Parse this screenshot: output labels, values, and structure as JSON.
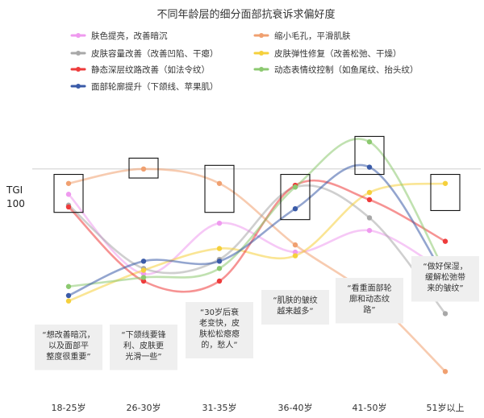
{
  "chart_data": {
    "type": "line",
    "title": "不同年龄层的细分面部抗衰诉求偏好度",
    "ylabel": "TGI",
    "reference_value": 100,
    "categories": [
      "18-25岁",
      "26-30岁",
      "31-35岁",
      "36-40岁",
      "41-50岁",
      "51岁以上"
    ],
    "ylim": [
      -15,
      140
    ],
    "series": [
      {
        "name": "肤色提亮，改善暗沉",
        "color": "#ef9aef",
        "values": [
          86,
          42,
          70,
          54,
          66,
          43
        ]
      },
      {
        "name": "缩小毛孔，平滑肌肤",
        "color": "#f0a070",
        "values": [
          92,
          100,
          92,
          58,
          30,
          -12
        ]
      },
      {
        "name": "皮肤容量改善（改善凹陷、干瘪）",
        "color": "#a8a8a8",
        "values": [
          80,
          45,
          50,
          90,
          73,
          20
        ]
      },
      {
        "name": "皮肤弹性修复（改善松弛、干燥）",
        "color": "#f5d03c",
        "values": [
          27,
          44,
          56,
          52,
          87,
          92
        ]
      },
      {
        "name": "静态深层纹路改善（如法令纹）",
        "color": "#ee3b3b",
        "values": [
          79,
          38,
          38,
          91,
          83,
          60
        ]
      },
      {
        "name": "动态表情纹控制（如鱼尾纹、抬头纹）",
        "color": "#8cc970",
        "values": [
          35,
          40,
          45,
          90,
          115,
          43
        ]
      },
      {
        "name": "面部轮廓提升（下颌线、苹果肌）",
        "color": "#3a5ba8",
        "values": [
          30,
          49,
          49,
          78,
          101,
          40
        ]
      }
    ],
    "highlight_boxes": [
      {
        "category": "18-25岁",
        "range": [
          76,
          97
        ]
      },
      {
        "category": "26-30岁",
        "range": [
          95,
          106
        ]
      },
      {
        "category": "31-35岁",
        "range": [
          76,
          102
        ]
      },
      {
        "category": "36-40岁",
        "range": [
          72,
          97
        ]
      },
      {
        "category": "41-50岁",
        "range": [
          97,
          118
        ]
      },
      {
        "category": "51岁以上",
        "range": [
          77,
          97
        ]
      }
    ],
    "annotations": [
      {
        "category": "18-25岁",
        "lines": [
          "“想改善暗沉，",
          "以及面部平",
          "整度很重要”"
        ]
      },
      {
        "category": "26-30岁",
        "lines": [
          "“下颌线要锋",
          "利、皮肤更",
          "光滑一些”"
        ]
      },
      {
        "category": "31-35岁",
        "lines": [
          "“30岁后衰",
          "老变快，皮",
          "肤松松瘪瘪",
          "的，愁人”"
        ]
      },
      {
        "category": "36-40岁",
        "lines": [
          "“肌肤的皱纹",
          "越来越多”"
        ]
      },
      {
        "category": "41-50岁",
        "lines": [
          "“看重面部轮",
          "廓和动态纹",
          "路”"
        ]
      },
      {
        "category": "51岁以上",
        "lines": [
          "“做好保湿，",
          "缓解松弛带",
          "来的皱纹”"
        ]
      }
    ]
  }
}
